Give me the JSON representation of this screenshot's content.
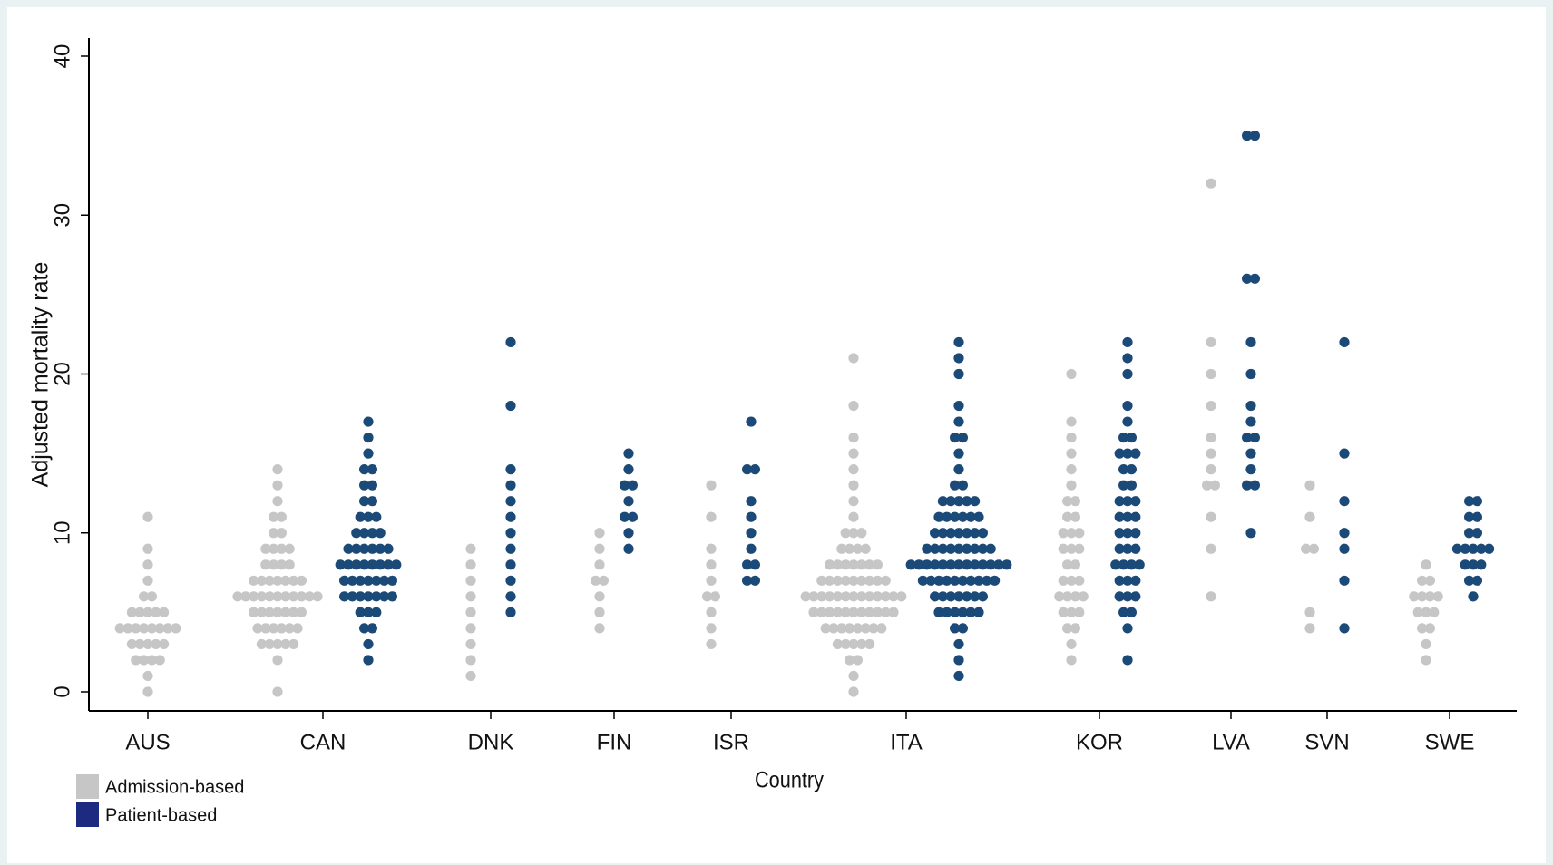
{
  "chart_data": {
    "type": "dotplot",
    "y_label": "Adjusted mortality rate",
    "x_label": "Country",
    "ylim": [
      0,
      40
    ],
    "yticks": [
      0,
      10,
      20,
      30,
      40
    ],
    "categories": [
      "AUS",
      "CAN",
      "DNK",
      "FIN",
      "ISR",
      "ITA",
      "KOR",
      "LVA",
      "SVN",
      "SWE"
    ],
    "series": [
      {
        "name": "Admission-based",
        "color": "#c6c6c6",
        "values": [
          [
            {
              "y": 0,
              "n": 1
            },
            {
              "y": 1,
              "n": 1
            },
            {
              "y": 2,
              "n": 4
            },
            {
              "y": 3,
              "n": 5
            },
            {
              "y": 4,
              "n": 8
            },
            {
              "y": 5,
              "n": 5
            },
            {
              "y": 6,
              "n": 2
            },
            {
              "y": 7,
              "n": 1
            },
            {
              "y": 8,
              "n": 1
            },
            {
              "y": 9,
              "n": 1
            },
            {
              "y": 11,
              "n": 1
            }
          ],
          [
            {
              "y": 0,
              "n": 1
            },
            {
              "y": 2,
              "n": 1
            },
            {
              "y": 3,
              "n": 5
            },
            {
              "y": 4,
              "n": 6
            },
            {
              "y": 5,
              "n": 7
            },
            {
              "y": 6,
              "n": 11
            },
            {
              "y": 7,
              "n": 7
            },
            {
              "y": 8,
              "n": 4
            },
            {
              "y": 9,
              "n": 4
            },
            {
              "y": 10,
              "n": 2
            },
            {
              "y": 11,
              "n": 2
            },
            {
              "y": 12,
              "n": 1
            },
            {
              "y": 13,
              "n": 1
            },
            {
              "y": 14,
              "n": 1
            }
          ],
          [
            {
              "y": 1,
              "n": 1
            },
            {
              "y": 2,
              "n": 1
            },
            {
              "y": 3,
              "n": 1
            },
            {
              "y": 4,
              "n": 1
            },
            {
              "y": 5,
              "n": 1
            },
            {
              "y": 6,
              "n": 1
            },
            {
              "y": 7,
              "n": 1
            },
            {
              "y": 8,
              "n": 1
            },
            {
              "y": 9,
              "n": 1
            }
          ],
          [
            {
              "y": 4,
              "n": 1
            },
            {
              "y": 5,
              "n": 1
            },
            {
              "y": 6,
              "n": 1
            },
            {
              "y": 7,
              "n": 2
            },
            {
              "y": 8,
              "n": 1
            },
            {
              "y": 9,
              "n": 1
            },
            {
              "y": 10,
              "n": 1
            }
          ],
          [
            {
              "y": 3,
              "n": 1
            },
            {
              "y": 4,
              "n": 1
            },
            {
              "y": 5,
              "n": 1
            },
            {
              "y": 6,
              "n": 2
            },
            {
              "y": 7,
              "n": 1
            },
            {
              "y": 8,
              "n": 1
            },
            {
              "y": 9,
              "n": 1
            },
            {
              "y": 11,
              "n": 1
            },
            {
              "y": 13,
              "n": 1
            }
          ],
          [
            {
              "y": 0,
              "n": 1
            },
            {
              "y": 1,
              "n": 1
            },
            {
              "y": 2,
              "n": 2
            },
            {
              "y": 3,
              "n": 5
            },
            {
              "y": 4,
              "n": 8
            },
            {
              "y": 5,
              "n": 11
            },
            {
              "y": 6,
              "n": 13
            },
            {
              "y": 7,
              "n": 9
            },
            {
              "y": 8,
              "n": 7
            },
            {
              "y": 9,
              "n": 4
            },
            {
              "y": 10,
              "n": 3
            },
            {
              "y": 11,
              "n": 1
            },
            {
              "y": 12,
              "n": 1
            },
            {
              "y": 13,
              "n": 1
            },
            {
              "y": 14,
              "n": 1
            },
            {
              "y": 15,
              "n": 1
            },
            {
              "y": 16,
              "n": 1
            },
            {
              "y": 18,
              "n": 1
            },
            {
              "y": 21,
              "n": 1
            }
          ],
          [
            {
              "y": 2,
              "n": 1
            },
            {
              "y": 3,
              "n": 1
            },
            {
              "y": 4,
              "n": 2
            },
            {
              "y": 5,
              "n": 3
            },
            {
              "y": 6,
              "n": 4
            },
            {
              "y": 7,
              "n": 3
            },
            {
              "y": 8,
              "n": 2
            },
            {
              "y": 9,
              "n": 3
            },
            {
              "y": 10,
              "n": 3
            },
            {
              "y": 11,
              "n": 2
            },
            {
              "y": 12,
              "n": 2
            },
            {
              "y": 13,
              "n": 1
            },
            {
              "y": 14,
              "n": 1
            },
            {
              "y": 15,
              "n": 1
            },
            {
              "y": 16,
              "n": 1
            },
            {
              "y": 17,
              "n": 1
            },
            {
              "y": 20,
              "n": 1
            }
          ],
          [
            {
              "y": 6,
              "n": 1
            },
            {
              "y": 9,
              "n": 1
            },
            {
              "y": 11,
              "n": 1
            },
            {
              "y": 13,
              "n": 2
            },
            {
              "y": 14,
              "n": 1
            },
            {
              "y": 15,
              "n": 1
            },
            {
              "y": 16,
              "n": 1
            },
            {
              "y": 18,
              "n": 1
            },
            {
              "y": 20,
              "n": 1
            },
            {
              "y": 22,
              "n": 1
            },
            {
              "y": 32,
              "n": 1
            }
          ],
          [
            {
              "y": 4,
              "n": 1
            },
            {
              "y": 5,
              "n": 1
            },
            {
              "y": 9,
              "n": 2
            },
            {
              "y": 11,
              "n": 1
            },
            {
              "y": 13,
              "n": 1
            }
          ],
          [
            {
              "y": 2,
              "n": 1
            },
            {
              "y": 3,
              "n": 1
            },
            {
              "y": 4,
              "n": 2
            },
            {
              "y": 5,
              "n": 3
            },
            {
              "y": 6,
              "n": 4
            },
            {
              "y": 7,
              "n": 2
            },
            {
              "y": 8,
              "n": 1
            }
          ]
        ]
      },
      {
        "name": "Patient-based",
        "color": "#1b4a78",
        "values": [
          [],
          [
            {
              "y": 2,
              "n": 1
            },
            {
              "y": 3,
              "n": 1
            },
            {
              "y": 4,
              "n": 2
            },
            {
              "y": 5,
              "n": 3
            },
            {
              "y": 6,
              "n": 7
            },
            {
              "y": 7,
              "n": 7
            },
            {
              "y": 8,
              "n": 8
            },
            {
              "y": 9,
              "n": 6
            },
            {
              "y": 10,
              "n": 4
            },
            {
              "y": 11,
              "n": 3
            },
            {
              "y": 12,
              "n": 2
            },
            {
              "y": 13,
              "n": 2
            },
            {
              "y": 14,
              "n": 2
            },
            {
              "y": 15,
              "n": 1
            },
            {
              "y": 16,
              "n": 1
            },
            {
              "y": 17,
              "n": 1
            }
          ],
          [
            {
              "y": 5,
              "n": 1
            },
            {
              "y": 6,
              "n": 1
            },
            {
              "y": 7,
              "n": 1
            },
            {
              "y": 8,
              "n": 1
            },
            {
              "y": 9,
              "n": 1
            },
            {
              "y": 10,
              "n": 1
            },
            {
              "y": 11,
              "n": 1
            },
            {
              "y": 12,
              "n": 1
            },
            {
              "y": 13,
              "n": 1
            },
            {
              "y": 14,
              "n": 1
            },
            {
              "y": 18,
              "n": 1
            },
            {
              "y": 22,
              "n": 1
            }
          ],
          [
            {
              "y": 9,
              "n": 1
            },
            {
              "y": 10,
              "n": 1
            },
            {
              "y": 11,
              "n": 2
            },
            {
              "y": 12,
              "n": 1
            },
            {
              "y": 13,
              "n": 2
            },
            {
              "y": 14,
              "n": 1
            },
            {
              "y": 15,
              "n": 1
            }
          ],
          [
            {
              "y": 7,
              "n": 2
            },
            {
              "y": 8,
              "n": 2
            },
            {
              "y": 9,
              "n": 1
            },
            {
              "y": 10,
              "n": 1
            },
            {
              "y": 11,
              "n": 1
            },
            {
              "y": 12,
              "n": 1
            },
            {
              "y": 14,
              "n": 2
            },
            {
              "y": 17,
              "n": 1
            }
          ],
          [
            {
              "y": 1,
              "n": 1
            },
            {
              "y": 2,
              "n": 1
            },
            {
              "y": 3,
              "n": 1
            },
            {
              "y": 4,
              "n": 2
            },
            {
              "y": 5,
              "n": 6
            },
            {
              "y": 6,
              "n": 7
            },
            {
              "y": 7,
              "n": 10
            },
            {
              "y": 8,
              "n": 13
            },
            {
              "y": 9,
              "n": 9
            },
            {
              "y": 10,
              "n": 7
            },
            {
              "y": 11,
              "n": 6
            },
            {
              "y": 12,
              "n": 5
            },
            {
              "y": 13,
              "n": 2
            },
            {
              "y": 14,
              "n": 1
            },
            {
              "y": 15,
              "n": 1
            },
            {
              "y": 16,
              "n": 2
            },
            {
              "y": 17,
              "n": 1
            },
            {
              "y": 18,
              "n": 1
            },
            {
              "y": 20,
              "n": 1
            },
            {
              "y": 21,
              "n": 1
            },
            {
              "y": 22,
              "n": 1
            }
          ],
          [
            {
              "y": 2,
              "n": 1
            },
            {
              "y": 4,
              "n": 1
            },
            {
              "y": 5,
              "n": 2
            },
            {
              "y": 6,
              "n": 3
            },
            {
              "y": 7,
              "n": 3
            },
            {
              "y": 8,
              "n": 4
            },
            {
              "y": 9,
              "n": 3
            },
            {
              "y": 10,
              "n": 3
            },
            {
              "y": 11,
              "n": 3
            },
            {
              "y": 12,
              "n": 3
            },
            {
              "y": 13,
              "n": 2
            },
            {
              "y": 14,
              "n": 2
            },
            {
              "y": 15,
              "n": 3
            },
            {
              "y": 16,
              "n": 2
            },
            {
              "y": 17,
              "n": 1
            },
            {
              "y": 18,
              "n": 1
            },
            {
              "y": 20,
              "n": 1
            },
            {
              "y": 21,
              "n": 1
            },
            {
              "y": 22,
              "n": 1
            }
          ],
          [
            {
              "y": 10,
              "n": 1
            },
            {
              "y": 13,
              "n": 2
            },
            {
              "y": 14,
              "n": 1
            },
            {
              "y": 15,
              "n": 1
            },
            {
              "y": 16,
              "n": 2
            },
            {
              "y": 17,
              "n": 1
            },
            {
              "y": 18,
              "n": 1
            },
            {
              "y": 20,
              "n": 1
            },
            {
              "y": 22,
              "n": 1
            },
            {
              "y": 26,
              "n": 2
            },
            {
              "y": 35,
              "n": 2
            }
          ],
          [
            {
              "y": 4,
              "n": 1
            },
            {
              "y": 7,
              "n": 1
            },
            {
              "y": 9,
              "n": 1
            },
            {
              "y": 10,
              "n": 1
            },
            {
              "y": 12,
              "n": 1
            },
            {
              "y": 15,
              "n": 1
            },
            {
              "y": 22,
              "n": 1
            }
          ],
          [
            {
              "y": 6,
              "n": 1
            },
            {
              "y": 7,
              "n": 2
            },
            {
              "y": 8,
              "n": 3
            },
            {
              "y": 9,
              "n": 5
            },
            {
              "y": 10,
              "n": 2
            },
            {
              "y": 11,
              "n": 2
            },
            {
              "y": 12,
              "n": 2
            }
          ]
        ]
      }
    ],
    "legend": "bottom-left"
  }
}
